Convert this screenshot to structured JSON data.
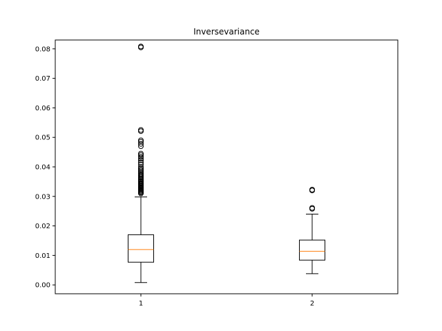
{
  "chart_data": {
    "type": "box",
    "title": "Inversevariance",
    "xlabel": "",
    "ylabel": "",
    "ylim": [
      -0.003,
      0.083
    ],
    "xlim": [
      0.5,
      2.5
    ],
    "grid": false,
    "yticks": [
      0.0,
      0.01,
      0.02,
      0.03,
      0.04,
      0.05,
      0.06,
      0.07,
      0.08
    ],
    "ytick_labels": [
      "0.00",
      "0.01",
      "0.02",
      "0.03",
      "0.04",
      "0.05",
      "0.06",
      "0.07",
      "0.08"
    ],
    "xticks": [
      1,
      2
    ],
    "xtick_labels": [
      "1",
      "2"
    ],
    "colors": {
      "box": "#000000",
      "median": "#ff7f0e",
      "flier": "#000000"
    },
    "boxes": [
      {
        "position": 1,
        "whislo": 0.0008,
        "q1": 0.0077,
        "med": 0.012,
        "q3": 0.017,
        "whishi": 0.0298,
        "fliers": [
          0.031,
          0.0313,
          0.0316,
          0.0319,
          0.0322,
          0.0325,
          0.0328,
          0.0331,
          0.0334,
          0.0337,
          0.034,
          0.0343,
          0.0346,
          0.035,
          0.0353,
          0.0357,
          0.036,
          0.0364,
          0.0368,
          0.0372,
          0.0376,
          0.038,
          0.0385,
          0.039,
          0.0395,
          0.04,
          0.0408,
          0.0415,
          0.0422,
          0.0428,
          0.0434,
          0.044,
          0.0445,
          0.047,
          0.0478,
          0.0485,
          0.049,
          0.0521,
          0.0525,
          0.0805,
          0.0808
        ]
      },
      {
        "position": 2,
        "whislo": 0.0038,
        "q1": 0.0084,
        "med": 0.0114,
        "q3": 0.0152,
        "whishi": 0.024,
        "fliers": [
          0.0258,
          0.0261,
          0.032,
          0.0323
        ]
      }
    ]
  }
}
